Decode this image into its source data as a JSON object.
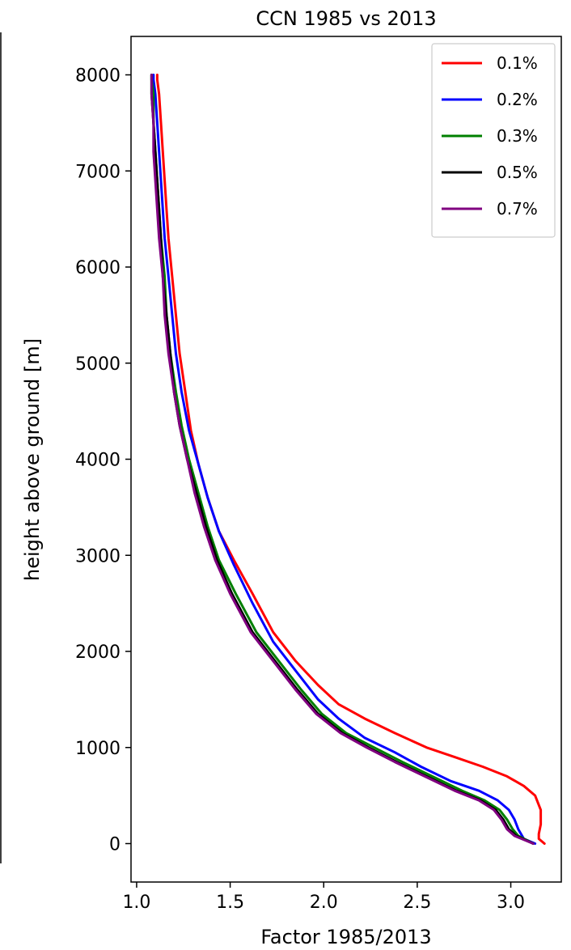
{
  "chart_data": {
    "type": "line",
    "title": "CCN 1985 vs 2013",
    "xlabel": "Factor 1985/2013",
    "ylabel": "height above ground [m]",
    "xlim": [
      0.97,
      3.27
    ],
    "ylim": [
      -400,
      8400
    ],
    "xticks": [
      1.0,
      1.5,
      2.0,
      2.5,
      3.0
    ],
    "xtick_labels": [
      "1.0",
      "1.5",
      "2.0",
      "2.5",
      "3.0"
    ],
    "yticks": [
      0,
      1000,
      2000,
      3000,
      4000,
      5000,
      6000,
      7000,
      8000
    ],
    "ytick_labels": [
      "0",
      "1000",
      "2000",
      "3000",
      "4000",
      "5000",
      "6000",
      "7000",
      "8000"
    ],
    "grid": false,
    "legend_position": "top-right",
    "series": [
      {
        "name": "0.1%",
        "color": "#ff0000",
        "x": [
          3.18,
          3.15,
          3.15,
          3.16,
          3.16,
          3.13,
          3.07,
          2.98,
          2.85,
          2.7,
          2.55,
          2.38,
          2.22,
          2.08,
          1.97,
          1.85,
          1.73,
          1.62,
          1.52,
          1.44,
          1.38,
          1.33,
          1.29,
          1.26,
          1.23,
          1.21,
          1.19,
          1.17,
          1.16,
          1.15,
          1.14,
          1.13,
          1.12,
          1.11,
          1.11
        ],
        "y": [
          0,
          50,
          100,
          200,
          350,
          500,
          600,
          700,
          800,
          900,
          1000,
          1150,
          1300,
          1450,
          1650,
          1900,
          2200,
          2600,
          2950,
          3250,
          3600,
          3950,
          4300,
          4700,
          5100,
          5500,
          5900,
          6300,
          6600,
          6900,
          7200,
          7500,
          7800,
          7950,
          8000
        ]
      },
      {
        "name": "0.2%",
        "color": "#0000ff",
        "x": [
          3.13,
          3.07,
          3.04,
          3.02,
          2.99,
          2.93,
          2.83,
          2.68,
          2.52,
          2.38,
          2.22,
          2.08,
          1.97,
          1.85,
          1.73,
          1.62,
          1.52,
          1.44,
          1.38,
          1.33,
          1.28,
          1.24,
          1.21,
          1.19,
          1.17,
          1.15,
          1.14,
          1.13,
          1.12,
          1.11,
          1.1,
          1.09,
          1.09
        ],
        "y": [
          0,
          50,
          150,
          250,
          350,
          450,
          550,
          650,
          800,
          950,
          1100,
          1300,
          1500,
          1800,
          2100,
          2500,
          2900,
          3250,
          3600,
          3950,
          4300,
          4700,
          5100,
          5500,
          5900,
          6300,
          6600,
          6900,
          7200,
          7500,
          7800,
          7950,
          8000
        ]
      },
      {
        "name": "0.3%",
        "color": "#008000",
        "x": [
          3.12,
          3.04,
          3.01,
          2.98,
          2.94,
          2.86,
          2.74,
          2.58,
          2.42,
          2.27,
          2.12,
          1.99,
          1.88,
          1.76,
          1.64,
          1.53,
          1.44,
          1.38,
          1.33,
          1.28,
          1.24,
          1.21,
          1.18,
          1.16,
          1.15,
          1.13,
          1.12,
          1.11,
          1.1,
          1.09,
          1.09,
          1.08,
          1.08
        ],
        "y": [
          0,
          80,
          150,
          250,
          350,
          450,
          550,
          700,
          850,
          1000,
          1150,
          1350,
          1600,
          1900,
          2200,
          2600,
          2950,
          3300,
          3650,
          4000,
          4350,
          4700,
          5100,
          5500,
          5900,
          6300,
          6600,
          6900,
          7200,
          7500,
          7800,
          7950,
          8000
        ]
      },
      {
        "name": "0.5%",
        "color": "#000000",
        "x": [
          3.12,
          3.03,
          2.99,
          2.96,
          2.92,
          2.84,
          2.71,
          2.55,
          2.39,
          2.24,
          2.1,
          1.97,
          1.86,
          1.74,
          1.62,
          1.51,
          1.43,
          1.37,
          1.32,
          1.27,
          1.23,
          1.2,
          1.18,
          1.16,
          1.14,
          1.13,
          1.12,
          1.11,
          1.1,
          1.09,
          1.08,
          1.08,
          1.08
        ],
        "y": [
          0,
          80,
          150,
          250,
          350,
          450,
          550,
          700,
          850,
          1000,
          1150,
          1350,
          1600,
          1900,
          2200,
          2600,
          2950,
          3300,
          3650,
          4000,
          4350,
          4700,
          5100,
          5500,
          5900,
          6300,
          6600,
          6900,
          7200,
          7500,
          7800,
          7950,
          8000
        ]
      },
      {
        "name": "0.7%",
        "color": "#800080",
        "x": [
          3.12,
          3.02,
          2.98,
          2.95,
          2.91,
          2.83,
          2.7,
          2.54,
          2.38,
          2.23,
          2.09,
          1.96,
          1.85,
          1.73,
          1.61,
          1.5,
          1.42,
          1.36,
          1.31,
          1.27,
          1.23,
          1.2,
          1.17,
          1.15,
          1.14,
          1.12,
          1.11,
          1.1,
          1.09,
          1.09,
          1.08,
          1.08,
          1.08
        ],
        "y": [
          0,
          80,
          150,
          250,
          350,
          450,
          550,
          700,
          850,
          1000,
          1150,
          1350,
          1600,
          1900,
          2200,
          2600,
          2950,
          3300,
          3650,
          4000,
          4350,
          4700,
          5100,
          5500,
          5900,
          6300,
          6600,
          6900,
          7200,
          7500,
          7800,
          7950,
          8000
        ]
      }
    ]
  }
}
